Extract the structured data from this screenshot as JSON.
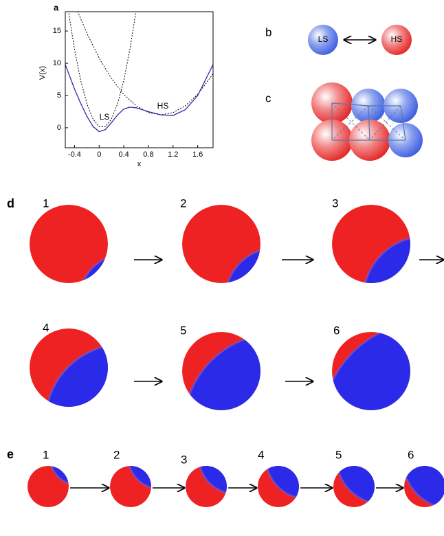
{
  "chart_data": {
    "type": "line",
    "panel_label": "a",
    "xlabel": "x",
    "ylabel": "V(x)",
    "xlim": [
      -0.55,
      1.85
    ],
    "ylim": [
      -3.1,
      18
    ],
    "xticks": [
      -0.4,
      0,
      0.4,
      0.8,
      1.2,
      1.6
    ],
    "yticks": [
      0,
      5,
      10,
      15
    ],
    "annotations": [
      "LS",
      "HS"
    ],
    "series": [
      {
        "color": "#000000",
        "dashed": true,
        "x": [
          -0.5,
          -0.4,
          -0.3,
          -0.2,
          -0.1,
          0,
          0.1,
          0.2,
          0.3,
          0.4,
          0.5,
          0.6
        ],
        "values": [
          18.15,
          12.15,
          7.35,
          3.75,
          1.35,
          0.15,
          0.15,
          1.35,
          3.75,
          7.35,
          12.15,
          18.15
        ]
      },
      {
        "color": "#000000",
        "dashed": true,
        "x": [
          -0.35,
          -0.2,
          0,
          0.2,
          0.4,
          0.6,
          0.8,
          1.0,
          1.2,
          1.4,
          1.6,
          1.85
        ],
        "values": [
          18.04,
          14.67,
          10.8,
          7.63,
          5.17,
          3.41,
          2.35,
          2,
          2.35,
          3.41,
          5.17,
          8.36
        ]
      },
      {
        "color": "#2a2aa8",
        "dashed": false,
        "x": [
          -0.55,
          -0.4,
          -0.3,
          -0.2,
          -0.1,
          0,
          0.1,
          0.2,
          0.3,
          0.4,
          0.5,
          0.6,
          0.7,
          0.8,
          1.0,
          1.2,
          1.4,
          1.6,
          1.85
        ],
        "values": [
          9.8,
          6,
          3.8,
          1.8,
          0.2,
          -0.6,
          -0.3,
          0.8,
          2.0,
          2.9,
          3.2,
          3.1,
          2.8,
          2.5,
          2.0,
          1.9,
          2.8,
          5.0,
          9.8
        ]
      }
    ]
  },
  "panel_b": {
    "label": "b",
    "states": [
      "LS",
      "HS"
    ]
  },
  "panel_c": {
    "label": "c"
  },
  "panel_d": {
    "label": "d",
    "frames": [
      "1",
      "2",
      "3",
      "4",
      "5",
      "6"
    ]
  },
  "panel_e": {
    "label": "e",
    "frames": [
      "1",
      "2",
      "3",
      "4",
      "5",
      "6"
    ]
  }
}
